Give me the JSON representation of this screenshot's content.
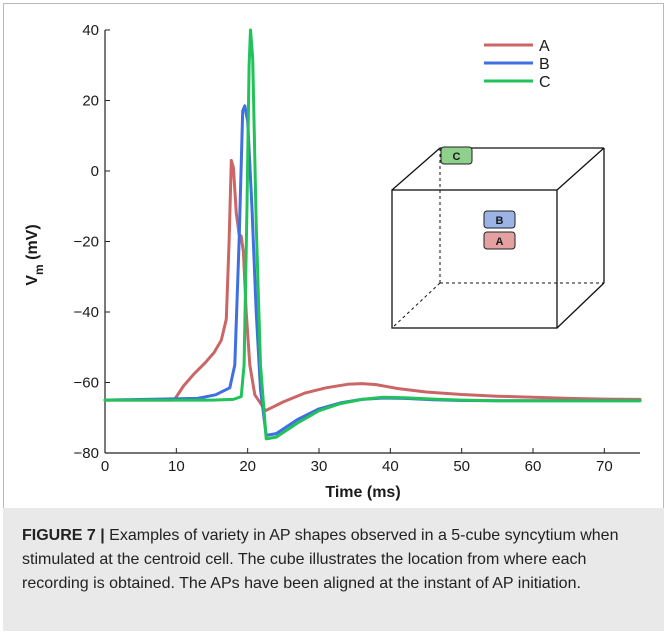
{
  "chart_data": {
    "type": "line",
    "xlabel": "Time (ms)",
    "ylabel": "V",
    "ylabel_sub": "m",
    "ylabel_unit": " (mV)",
    "xlim": [
      0,
      75
    ],
    "ylim": [
      -80,
      40
    ],
    "xticks": [
      0,
      10,
      20,
      30,
      40,
      50,
      60,
      70
    ],
    "yticks": [
      40,
      20,
      0,
      -20,
      -40,
      -60,
      -80
    ],
    "grid": false,
    "legend_position": "top-right",
    "series": [
      {
        "name": "A",
        "color": "#cc6666",
        "points": [
          [
            0,
            -65
          ],
          [
            9.7,
            -65
          ],
          [
            11,
            -61
          ],
          [
            12.5,
            -57.5
          ],
          [
            14,
            -54.5
          ],
          [
            15.3,
            -51.5
          ],
          [
            16.3,
            -48
          ],
          [
            17,
            -42
          ],
          [
            17.4,
            -20
          ],
          [
            17.7,
            3
          ],
          [
            18,
            1
          ],
          [
            18.4,
            -12
          ],
          [
            18.8,
            -18
          ],
          [
            19.1,
            -18.5
          ],
          [
            19.4,
            -23
          ],
          [
            19.8,
            -40
          ],
          [
            20.3,
            -55
          ],
          [
            21,
            -63.5
          ],
          [
            22.5,
            -68
          ],
          [
            25,
            -65.5
          ],
          [
            28,
            -63
          ],
          [
            31,
            -61.5
          ],
          [
            34,
            -60.5
          ],
          [
            36,
            -60.3
          ],
          [
            38,
            -60.6
          ],
          [
            41,
            -61.7
          ],
          [
            45,
            -62.7
          ],
          [
            50,
            -63.4
          ],
          [
            55,
            -63.9
          ],
          [
            60,
            -64.2
          ],
          [
            65,
            -64.5
          ],
          [
            70,
            -64.7
          ],
          [
            75,
            -64.8
          ]
        ]
      },
      {
        "name": "B",
        "color": "#3f6fe0",
        "points": [
          [
            0,
            -65
          ],
          [
            13,
            -64.5
          ],
          [
            15.5,
            -63.5
          ],
          [
            17.5,
            -61.5
          ],
          [
            18.2,
            -55
          ],
          [
            18.8,
            -20
          ],
          [
            19.3,
            17
          ],
          [
            19.6,
            18.5
          ],
          [
            20,
            14
          ],
          [
            20.6,
            -10
          ],
          [
            21.2,
            -40
          ],
          [
            21.8,
            -62
          ],
          [
            22.6,
            -75
          ],
          [
            24,
            -74.5
          ],
          [
            27,
            -70.5
          ],
          [
            30,
            -67.5
          ],
          [
            33,
            -65.8
          ],
          [
            36,
            -64.8
          ],
          [
            39,
            -64.4
          ],
          [
            42,
            -64.5
          ],
          [
            46,
            -64.9
          ],
          [
            50,
            -65.1
          ],
          [
            55,
            -65.2
          ],
          [
            75,
            -65.2
          ]
        ]
      },
      {
        "name": "C",
        "color": "#22c25a",
        "points": [
          [
            0,
            -65
          ],
          [
            15,
            -65
          ],
          [
            18,
            -64.8
          ],
          [
            19.1,
            -64
          ],
          [
            19.5,
            -55
          ],
          [
            19.9,
            -10
          ],
          [
            20.2,
            30
          ],
          [
            20.4,
            40
          ],
          [
            20.7,
            32
          ],
          [
            21.2,
            -15
          ],
          [
            21.8,
            -55
          ],
          [
            22.6,
            -76
          ],
          [
            24,
            -75.5
          ],
          [
            27,
            -71.5
          ],
          [
            30,
            -68
          ],
          [
            33,
            -66
          ],
          [
            36,
            -64.8
          ],
          [
            39,
            -64.2
          ],
          [
            42,
            -64.3
          ],
          [
            46,
            -64.7
          ],
          [
            50,
            -65
          ],
          [
            55,
            -65.2
          ],
          [
            75,
            -65.2
          ]
        ]
      }
    ],
    "inset": {
      "box_labels": [
        "C",
        "B",
        "A"
      ],
      "box_colors": [
        "#8fd08c",
        "#9bb4e6",
        "#e4a1a1"
      ]
    }
  },
  "caption": {
    "label": "FIGURE 7 |",
    "text": " Examples of variety in AP shapes observed in a 5-cube syncytium when stimulated at the centroid cell. The cube illustrates the location from where each recording is obtained. The APs have been aligned at the instant of AP initiation."
  }
}
